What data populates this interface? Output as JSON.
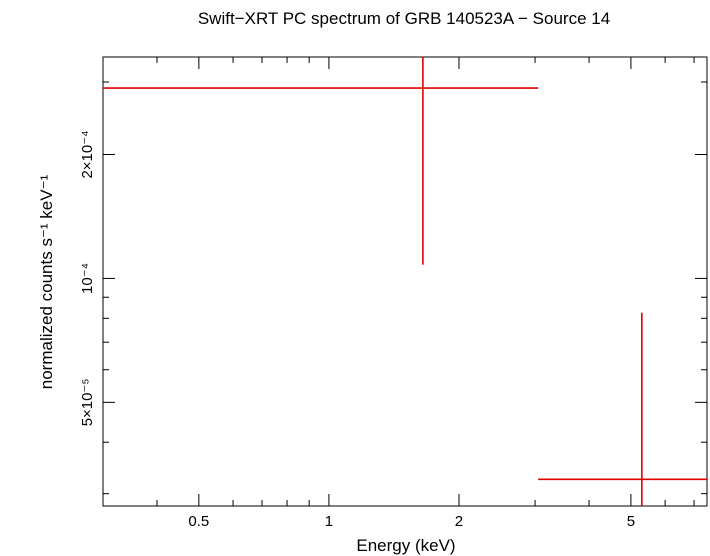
{
  "chart_data": {
    "type": "scatter",
    "title": "Swift−XRT PC spectrum of GRB 140523A − Source 14",
    "xlabel": "Energy (keV)",
    "ylabel": "normalized counts s⁻¹ keV⁻¹",
    "x_scale": "log",
    "y_scale": "log",
    "xlim": [
      0.3,
      7.5
    ],
    "ylim": [
      2.8e-05,
      0.000345
    ],
    "x_ticks": [
      {
        "value": 0.5,
        "label": "0.5"
      },
      {
        "value": 1,
        "label": "1"
      },
      {
        "value": 2,
        "label": "2"
      },
      {
        "value": 5,
        "label": "5"
      }
    ],
    "y_ticks": [
      {
        "value": 5e-05,
        "label": "5×10⁻⁵"
      },
      {
        "value": 0.0001,
        "label": "10⁻⁴"
      },
      {
        "value": 0.0002,
        "label": "2×10⁻⁴"
      }
    ],
    "series": [
      {
        "color": "#e00000",
        "points": [
          {
            "x": 1.65,
            "x_lo": 0.3,
            "x_hi": 3.05,
            "y": 0.00029,
            "y_lo": 0.000108,
            "y_hi": 0.000345
          },
          {
            "x": 5.3,
            "x_lo": 3.05,
            "x_hi": 7.5,
            "y": 3.25e-05,
            "y_lo": 2.8e-05,
            "y_hi": 8.25e-05
          }
        ]
      }
    ]
  }
}
